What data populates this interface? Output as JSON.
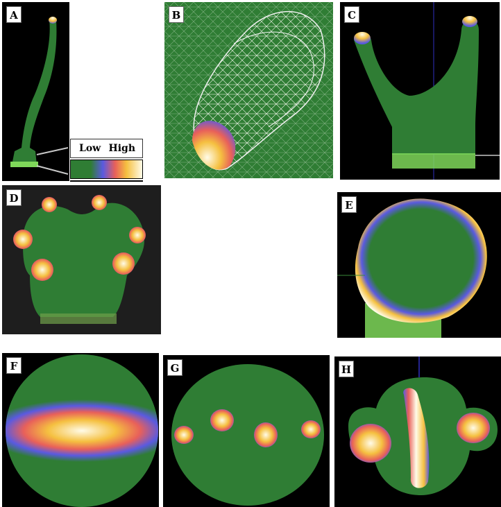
{
  "panels": {
    "a": "A",
    "b": "B",
    "c": "C",
    "d": "D",
    "e": "E",
    "f": "F",
    "g": "G",
    "h": "H"
  },
  "legend": {
    "low": "Low",
    "high": "High"
  },
  "colors": {
    "background": "#000000",
    "tissue": "#2f7d34",
    "low": "#2f7d34",
    "mid": "#5a5ae0",
    "warm": "#e8605a",
    "hot": "#f5c040",
    "high": "#fffbe8",
    "mesh": "#e6f0e0"
  }
}
